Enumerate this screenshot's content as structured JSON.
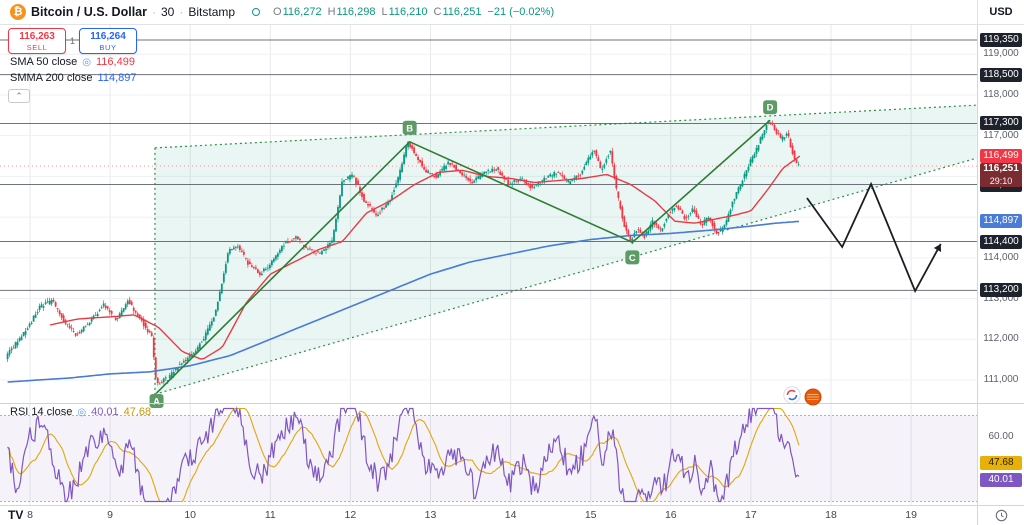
{
  "header": {
    "symbol": "Bitcoin / U.S. Dollar",
    "separator": "·",
    "interval": "30",
    "exchange": "Bitstamp",
    "ohlc": {
      "o": [
        "O",
        "116,272"
      ],
      "h": [
        "H",
        "116,298"
      ],
      "l": [
        "L",
        "116,210"
      ],
      "c": [
        "C",
        "116,251"
      ]
    },
    "change": "−21 (−0.02%)",
    "currency": "USD"
  },
  "trade_panel": {
    "sell_price": "116,263",
    "sell_label": "SELL",
    "spread": "1",
    "buy_price": "116,264",
    "buy_label": "BUY"
  },
  "indicators": {
    "sma": {
      "name": "SMA 50 close",
      "value": "116,499"
    },
    "smma": {
      "name": "SMMA 200 close",
      "value": "114,897"
    },
    "rsi": {
      "name": "RSI 14 close",
      "value": "40.01",
      "smoothed": "47.68"
    }
  },
  "price_axis": {
    "plain_labels": [
      "119,000",
      "118,000",
      "117,000",
      "114,000",
      "113,000",
      "112,000",
      "111,000"
    ],
    "level_badges": [
      "119,350",
      "118,500",
      "117,300",
      "115,800",
      "114,400",
      "113,200"
    ],
    "sma_badge": "116,499",
    "smma_badge": "114,897",
    "last_price_badge": "116,251",
    "countdown": "29:10"
  },
  "rsi_axis": {
    "plain_label": "60.00",
    "plain_value": 60,
    "smoothed_badge": "47.68",
    "rsi_badge": "40.01"
  },
  "time_axis": {
    "labels": [
      8,
      9,
      10,
      11,
      12,
      13,
      14,
      15,
      16,
      17,
      18,
      19
    ]
  },
  "footer": {
    "logo": "TV"
  },
  "chart_data": {
    "type": "candlestick",
    "title": "Bitcoin / U.S. Dollar · 30 · Bitstamp",
    "up_color": "#089981",
    "down_color": "#f23645",
    "sma_color": "#e73b44",
    "smma_color": "#4a7bd5",
    "rsi_color": "#7e57c2",
    "rsi_ma_color": "#e0a80d",
    "pattern_color": "#2f8f46",
    "current_price": 116251,
    "countdown": "29:10",
    "sma50_value": 116499,
    "smma200_value": 114897,
    "x_axis_days": [
      8,
      9,
      10,
      11,
      12,
      13,
      14,
      15,
      16,
      17,
      18,
      19
    ],
    "y_gridlines": [
      119000,
      118000,
      117000,
      116000,
      115000,
      114000,
      113000,
      112000,
      111000
    ],
    "key_levels": [
      119350,
      118500,
      117300,
      115800,
      114400,
      113200
    ],
    "candle_range": [
      7.72,
      17.61
    ],
    "candle_step": 0.025,
    "price_path_anchors": [
      [
        7.72,
        111550
      ],
      [
        7.85,
        111900
      ],
      [
        8.0,
        112300
      ],
      [
        8.15,
        112800
      ],
      [
        8.3,
        112950
      ],
      [
        8.45,
        112450
      ],
      [
        8.6,
        112100
      ],
      [
        8.75,
        112400
      ],
      [
        8.95,
        112850
      ],
      [
        9.1,
        112450
      ],
      [
        9.25,
        112950
      ],
      [
        9.4,
        112500
      ],
      [
        9.55,
        112050
      ],
      [
        9.6,
        110900
      ],
      [
        9.75,
        111050
      ],
      [
        9.9,
        111400
      ],
      [
        10.05,
        111600
      ],
      [
        10.2,
        112050
      ],
      [
        10.35,
        112700
      ],
      [
        10.5,
        114150
      ],
      [
        10.62,
        114300
      ],
      [
        10.75,
        113850
      ],
      [
        10.9,
        113600
      ],
      [
        11.05,
        113900
      ],
      [
        11.2,
        114350
      ],
      [
        11.35,
        114500
      ],
      [
        11.5,
        114200
      ],
      [
        11.65,
        114100
      ],
      [
        11.8,
        114450
      ],
      [
        11.92,
        115850
      ],
      [
        12.05,
        116050
      ],
      [
        12.2,
        115400
      ],
      [
        12.35,
        115050
      ],
      [
        12.5,
        115350
      ],
      [
        12.62,
        115950
      ],
      [
        12.74,
        116850
      ],
      [
        12.85,
        116500
      ],
      [
        12.95,
        116150
      ],
      [
        13.1,
        116000
      ],
      [
        13.25,
        116350
      ],
      [
        13.4,
        116100
      ],
      [
        13.55,
        115850
      ],
      [
        13.7,
        116100
      ],
      [
        13.85,
        116200
      ],
      [
        14.0,
        115800
      ],
      [
        14.15,
        115950
      ],
      [
        14.3,
        115700
      ],
      [
        14.45,
        115950
      ],
      [
        14.6,
        116100
      ],
      [
        14.75,
        115850
      ],
      [
        14.9,
        116050
      ],
      [
        15.0,
        116450
      ],
      [
        15.06,
        116700
      ],
      [
        15.15,
        116150
      ],
      [
        15.27,
        116650
      ],
      [
        15.35,
        115600
      ],
      [
        15.45,
        114750
      ],
      [
        15.52,
        114380
      ],
      [
        15.6,
        114700
      ],
      [
        15.7,
        114520
      ],
      [
        15.8,
        114900
      ],
      [
        15.9,
        114680
      ],
      [
        16.0,
        115100
      ],
      [
        16.1,
        115300
      ],
      [
        16.2,
        114950
      ],
      [
        16.3,
        115200
      ],
      [
        16.4,
        114800
      ],
      [
        16.5,
        115000
      ],
      [
        16.6,
        114600
      ],
      [
        16.7,
        114780
      ],
      [
        16.8,
        115400
      ],
      [
        16.9,
        115800
      ],
      [
        17.0,
        116300
      ],
      [
        17.1,
        116700
      ],
      [
        17.18,
        117100
      ],
      [
        17.24,
        117380
      ],
      [
        17.32,
        117180
      ],
      [
        17.4,
        116900
      ],
      [
        17.48,
        117050
      ],
      [
        17.55,
        116550
      ],
      [
        17.61,
        116251
      ]
    ],
    "sma50_path": [
      [
        8.25,
        112350
      ],
      [
        8.6,
        112500
      ],
      [
        9.0,
        112550
      ],
      [
        9.3,
        112600
      ],
      [
        9.6,
        112300
      ],
      [
        9.9,
        111700
      ],
      [
        10.15,
        111500
      ],
      [
        10.4,
        111800
      ],
      [
        10.7,
        112900
      ],
      [
        11.0,
        113600
      ],
      [
        11.3,
        113900
      ],
      [
        11.6,
        114200
      ],
      [
        11.9,
        114400
      ],
      [
        12.2,
        115100
      ],
      [
        12.5,
        115400
      ],
      [
        12.8,
        115800
      ],
      [
        13.1,
        116100
      ],
      [
        13.4,
        116150
      ],
      [
        13.7,
        116000
      ],
      [
        14.0,
        115950
      ],
      [
        14.3,
        115850
      ],
      [
        14.6,
        115900
      ],
      [
        14.9,
        115950
      ],
      [
        15.2,
        116050
      ],
      [
        15.5,
        115800
      ],
      [
        15.8,
        115400
      ],
      [
        16.05,
        114900
      ],
      [
        16.3,
        114850
      ],
      [
        16.55,
        114950
      ],
      [
        16.8,
        115050
      ],
      [
        17.0,
        115150
      ],
      [
        17.2,
        115650
      ],
      [
        17.4,
        116200
      ],
      [
        17.61,
        116499
      ]
    ],
    "smma200_path": [
      [
        7.72,
        110950
      ],
      [
        8.5,
        111050
      ],
      [
        9.0,
        111150
      ],
      [
        9.5,
        111200
      ],
      [
        10.0,
        111350
      ],
      [
        10.5,
        111600
      ],
      [
        11.0,
        112000
      ],
      [
        11.5,
        112400
      ],
      [
        12.0,
        112800
      ],
      [
        12.5,
        113200
      ],
      [
        13.0,
        113600
      ],
      [
        13.5,
        113900
      ],
      [
        14.0,
        114100
      ],
      [
        14.5,
        114300
      ],
      [
        15.0,
        114450
      ],
      [
        15.5,
        114550
      ],
      [
        16.0,
        114600
      ],
      [
        16.5,
        114680
      ],
      [
        17.0,
        114780
      ],
      [
        17.3,
        114850
      ],
      [
        17.61,
        114897
      ]
    ],
    "pattern": {
      "type": "rising-wedge",
      "upper": [
        [
          9.56,
          116700
        ],
        [
          19.82,
          117750
        ]
      ],
      "lower": [
        [
          9.56,
          110650
        ],
        [
          19.82,
          116450
        ]
      ]
    },
    "waves": [
      {
        "label": "A",
        "day": 9.58,
        "price": 110680,
        "offset": 8
      },
      {
        "label": "B",
        "day": 12.74,
        "price": 116850,
        "offset": -14
      },
      {
        "label": "C",
        "day": 15.52,
        "price": 114380,
        "offset": 15
      },
      {
        "label": "D",
        "day": 17.24,
        "price": 117380,
        "offset": -13
      }
    ],
    "projection": [
      [
        17.7,
        115470
      ],
      [
        18.14,
        114266
      ],
      [
        18.5,
        115813
      ],
      [
        19.05,
        113185
      ],
      [
        19.37,
        114340
      ]
    ],
    "rsi": {
      "period": 14,
      "current": 40.01,
      "smoothed": 47.68,
      "band": [
        30,
        70
      ],
      "anchors": [
        [
          7.72,
          52
        ],
        [
          7.85,
          35
        ],
        [
          8.0,
          60
        ],
        [
          8.15,
          68
        ],
        [
          8.3,
          48
        ],
        [
          8.45,
          30
        ],
        [
          8.6,
          42
        ],
        [
          8.75,
          55
        ],
        [
          8.95,
          62
        ],
        [
          9.1,
          40
        ],
        [
          9.25,
          58
        ],
        [
          9.4,
          35
        ],
        [
          9.55,
          22
        ],
        [
          9.62,
          14
        ],
        [
          9.75,
          30
        ],
        [
          9.9,
          45
        ],
        [
          10.05,
          52
        ],
        [
          10.2,
          60
        ],
        [
          10.35,
          72
        ],
        [
          10.5,
          80
        ],
        [
          10.62,
          70
        ],
        [
          10.75,
          48
        ],
        [
          10.9,
          40
        ],
        [
          11.05,
          55
        ],
        [
          11.2,
          65
        ],
        [
          11.35,
          68
        ],
        [
          11.5,
          45
        ],
        [
          11.65,
          40
        ],
        [
          11.8,
          58
        ],
        [
          11.92,
          76
        ],
        [
          12.05,
          78
        ],
        [
          12.2,
          52
        ],
        [
          12.35,
          38
        ],
        [
          12.5,
          50
        ],
        [
          12.62,
          66
        ],
        [
          12.74,
          78
        ],
        [
          12.85,
          60
        ],
        [
          12.95,
          46
        ],
        [
          13.1,
          42
        ],
        [
          13.25,
          56
        ],
        [
          13.4,
          48
        ],
        [
          13.55,
          36
        ],
        [
          13.7,
          50
        ],
        [
          13.85,
          55
        ],
        [
          14.0,
          38
        ],
        [
          14.15,
          48
        ],
        [
          14.3,
          35
        ],
        [
          14.45,
          50
        ],
        [
          14.6,
          58
        ],
        [
          14.75,
          42
        ],
        [
          14.9,
          52
        ],
        [
          15.0,
          62
        ],
        [
          15.06,
          68
        ],
        [
          15.15,
          48
        ],
        [
          15.27,
          64
        ],
        [
          15.35,
          40
        ],
        [
          15.45,
          25
        ],
        [
          15.52,
          18
        ],
        [
          15.6,
          32
        ],
        [
          15.7,
          28
        ],
        [
          15.8,
          42
        ],
        [
          15.9,
          35
        ],
        [
          16.0,
          48
        ],
        [
          16.1,
          55
        ],
        [
          16.2,
          40
        ],
        [
          16.3,
          50
        ],
        [
          16.4,
          34
        ],
        [
          16.5,
          45
        ],
        [
          16.6,
          30
        ],
        [
          16.7,
          38
        ],
        [
          16.8,
          55
        ],
        [
          16.9,
          62
        ],
        [
          17.0,
          70
        ],
        [
          17.1,
          74
        ],
        [
          17.18,
          78
        ],
        [
          17.24,
          80
        ],
        [
          17.32,
          68
        ],
        [
          17.4,
          55
        ],
        [
          17.48,
          58
        ],
        [
          17.55,
          42
        ],
        [
          17.61,
          40
        ]
      ]
    }
  }
}
